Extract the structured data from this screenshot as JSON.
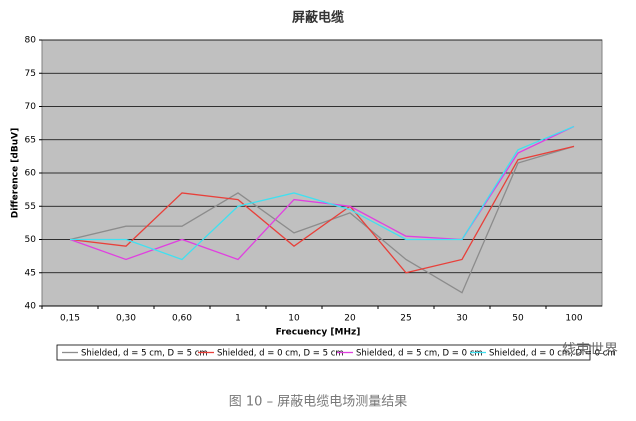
{
  "chart_data": {
    "type": "line",
    "title": "屏蔽电缆",
    "x_label": "Frecuency [MHz]",
    "y_label": "Difference [dBuV]",
    "categories": [
      "0,15",
      "0,30",
      "0,60",
      "1",
      "10",
      "20",
      "25",
      "30",
      "50",
      "100"
    ],
    "series": [
      {
        "name": "Shielded, d = 5 cm, D = 5 cm",
        "color": "#8c8c8c",
        "values": [
          50,
          52,
          52,
          57,
          51,
          54,
          47,
          42,
          61.5,
          64
        ]
      },
      {
        "name": "Shielded, d = 0 cm, D = 5 cm",
        "color": "#e8403a",
        "values": [
          50,
          49,
          57,
          56,
          49,
          55,
          45,
          47,
          62,
          64
        ]
      },
      {
        "name": "Shielded, d = 5 cm, D = 0 cm",
        "color": "#e040e0",
        "values": [
          50,
          47,
          50,
          47,
          56,
          55,
          50.5,
          50,
          63,
          67
        ]
      },
      {
        "name": "Shielded, d = 0 cm, D = 0 cm",
        "color": "#40e0f0",
        "values": [
          50,
          50,
          47,
          55,
          57,
          54.5,
          50,
          50,
          63.5,
          67
        ]
      }
    ],
    "ylim": [
      40,
      80
    ],
    "yticks": [
      40,
      45,
      50,
      55,
      60,
      65,
      70,
      75,
      80
    ],
    "grid": true,
    "plot_background": "#c0c0c0"
  },
  "caption": "图 10 – 屏蔽电缆电场测量结果",
  "watermark": "线束世界"
}
